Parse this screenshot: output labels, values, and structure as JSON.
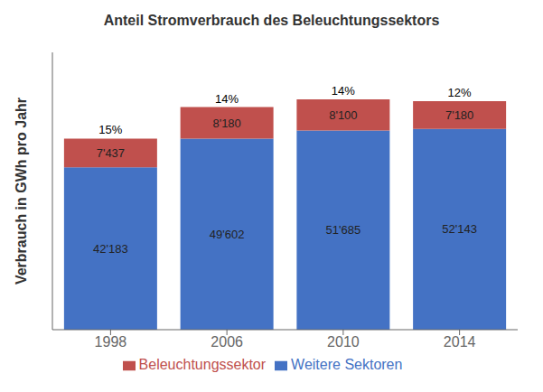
{
  "chart_data": {
    "type": "bar",
    "title": "Anteil Stromverbrauch des Beleuchtungssektors",
    "ylabel": "Verbrauch in GWh pro Jahr",
    "categories": [
      "1998",
      "2006",
      "2010",
      "2014"
    ],
    "stacked": true,
    "data_labels": true,
    "series": [
      {
        "name": "Weitere Sektoren",
        "color": "#4472C4",
        "values": [
          42183,
          49602,
          51685,
          52143
        ],
        "value_labels": [
          "42'183",
          "49'602",
          "51'685",
          "52'143"
        ]
      },
      {
        "name": "Beleuchtungssektor",
        "color": "#C0504D",
        "values": [
          7437,
          8180,
          8100,
          7180
        ],
        "value_labels": [
          "7'437",
          "8'180",
          "8'100",
          "7'180"
        ]
      }
    ],
    "annotations": [
      "15%",
      "14%",
      "14%",
      "12%"
    ],
    "ylim": [
      0,
      72000
    ],
    "yticks": [],
    "tick_labels": "x",
    "legend": "bottom",
    "grid": false
  }
}
